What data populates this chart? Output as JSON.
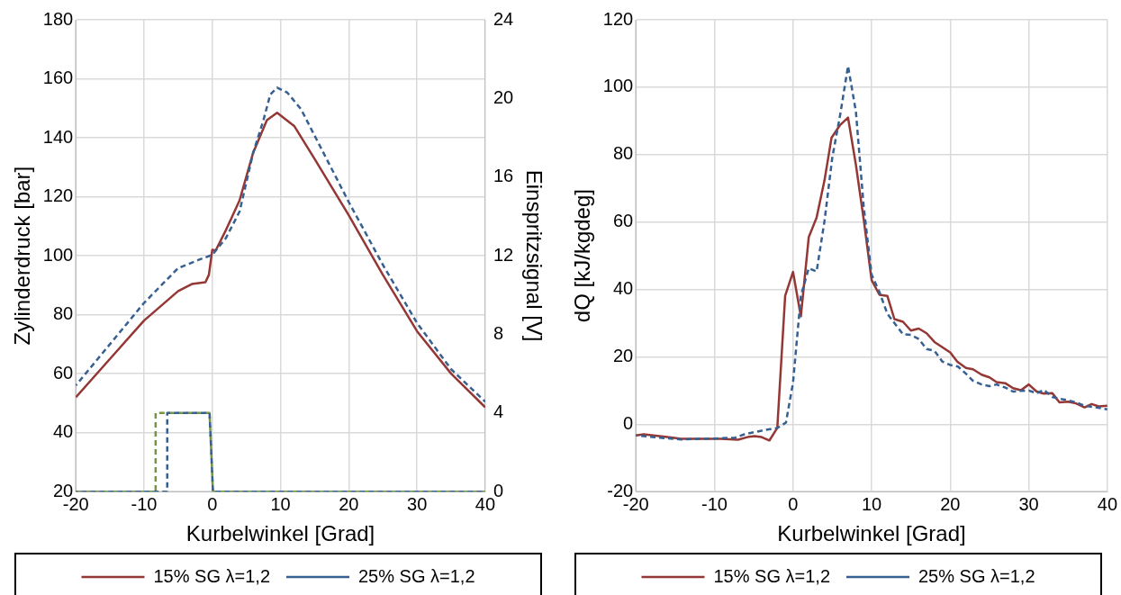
{
  "chart_data": [
    {
      "type": "line",
      "xlabel": "Kurbelwinkel [Grad]",
      "ylabel": "Zylinderdruck [bar]",
      "y2label": "Einspritzsignal [V]",
      "xlim": [
        -20,
        40
      ],
      "xticks": [
        -20,
        -10,
        0,
        10,
        20,
        30,
        40
      ],
      "ylim": [
        20,
        180
      ],
      "yticks": [
        20,
        40,
        60,
        80,
        100,
        120,
        140,
        160,
        180
      ],
      "y2lim": [
        0,
        24
      ],
      "y2ticks": [
        0,
        4,
        8,
        12,
        16,
        20,
        24
      ],
      "grid": true,
      "legend": "bottom",
      "marker": "none",
      "series": [
        {
          "name": "15% SG λ=1,2",
          "color": "#953735",
          "line_style": "solid",
          "x": [
            -20,
            -15,
            -10,
            -5,
            -3,
            -1,
            -0.5,
            0,
            0.5,
            2,
            4,
            6,
            8,
            9.5,
            12,
            15,
            20,
            25,
            30,
            35,
            40
          ],
          "values": [
            52,
            65,
            78,
            88,
            90.4,
            91,
            93.5,
            102,
            101.8,
            108.7,
            118.8,
            135,
            146,
            148.5,
            144,
            132.8,
            113.7,
            93.5,
            74.4,
            60,
            48.6
          ]
        },
        {
          "name": "25% SG λ=1,2",
          "color": "#376092",
          "line_style": "dashed",
          "x": [
            -20,
            -15,
            -10,
            -5,
            -2,
            0,
            2,
            4,
            6,
            7.5,
            8.5,
            9.5,
            11,
            13,
            15,
            20,
            25,
            30,
            35,
            40
          ],
          "values": [
            56,
            70,
            84,
            95.8,
            98.6,
            100.3,
            106,
            115,
            135,
            146,
            154.7,
            157,
            155.3,
            149.7,
            140.7,
            118.2,
            96.9,
            77.2,
            61.5,
            50.5
          ]
        },
        {
          "color": "#77933c",
          "line_style": "dashed",
          "axis": "y2",
          "x": [
            -20,
            -8.3,
            -8.3,
            -0.4,
            0.1,
            40
          ],
          "values": [
            0,
            0,
            4,
            4,
            0,
            0
          ]
        },
        {
          "color": "#376092",
          "line_style": "dashed",
          "axis": "y2",
          "x": [
            -20,
            -6.6,
            -6.6,
            -0.4,
            0.1,
            40
          ],
          "values": [
            0,
            0,
            4,
            4,
            0,
            0
          ]
        }
      ]
    },
    {
      "type": "line",
      "xlabel": "Kurbelwinkel [Grad]",
      "ylabel": "dQ [kJ/kgdeg]",
      "xlim": [
        -20,
        40
      ],
      "xticks": [
        -20,
        -10,
        0,
        10,
        20,
        30,
        40
      ],
      "ylim": [
        -20,
        120
      ],
      "yticks": [
        -20,
        0,
        20,
        40,
        60,
        80,
        100,
        120
      ],
      "grid": true,
      "legend": "bottom",
      "marker": "none",
      "series": [
        {
          "name": "15% SG λ=1,2",
          "color": "#953735",
          "line_style": "solid",
          "x": [
            -20,
            -19,
            -16,
            -14.2,
            -11,
            -9.2,
            -7,
            -5.6,
            -4.9,
            -4,
            -3,
            -2,
            -1,
            0,
            1,
            2,
            3,
            4,
            4.9,
            6,
            7,
            8,
            9,
            10,
            11,
            12,
            12.9,
            14,
            15,
            16,
            17,
            18,
            20,
            20.9,
            22,
            22.9,
            24,
            25,
            25.9,
            27,
            28,
            29,
            30,
            31,
            31.9,
            33,
            33.9,
            35,
            36,
            37.1,
            38,
            38.9,
            40
          ],
          "values": [
            -3.3,
            -3,
            -3.8,
            -4.3,
            -4.3,
            -4.3,
            -4.6,
            -3.7,
            -3.5,
            -3.8,
            -4.8,
            -1.1,
            38.1,
            45.2,
            32,
            55.5,
            61.3,
            72.3,
            85,
            88.8,
            91,
            77,
            60.7,
            42.8,
            38.4,
            38.1,
            31.2,
            30.4,
            27.8,
            28.4,
            27,
            24.4,
            21.3,
            18.6,
            16.7,
            16.3,
            14.7,
            13.9,
            12.5,
            12.2,
            10.7,
            10.1,
            11.8,
            9.7,
            9.1,
            9.2,
            6.5,
            6.7,
            6.2,
            5,
            6,
            5.3,
            5.5
          ]
        },
        {
          "name": "25% SG λ=1,2",
          "color": "#376092",
          "line_style": "dashed",
          "x": [
            -20,
            -16.9,
            -14.2,
            -11,
            -7.4,
            -6.1,
            -4,
            -2,
            -0.9,
            0,
            1,
            2,
            3,
            4,
            5,
            6,
            7,
            8,
            9,
            10,
            11,
            12,
            13,
            14,
            15,
            16,
            17,
            18,
            19,
            20,
            21,
            22,
            22.9,
            24,
            25,
            25.9,
            27,
            28,
            29,
            30,
            31,
            31.9,
            33,
            33.9,
            35,
            36,
            37.1,
            38.9,
            40
          ],
          "values": [
            -3.3,
            -4,
            -4.5,
            -4.3,
            -4,
            -2.9,
            -1.9,
            -1.1,
            0.5,
            12.3,
            38.1,
            46.3,
            45.3,
            60.2,
            79.2,
            91.8,
            106.3,
            92.8,
            64.4,
            44.4,
            39.2,
            32.8,
            29.7,
            26.7,
            26.5,
            25.3,
            22.3,
            21.8,
            18.6,
            17.6,
            17.1,
            15,
            12.9,
            11.8,
            11.3,
            11.8,
            10.9,
            9.7,
            9.9,
            10,
            9.2,
            10.2,
            8.1,
            7.6,
            7.1,
            6.5,
            5.5,
            4.9,
            4.4
          ]
        }
      ]
    }
  ]
}
